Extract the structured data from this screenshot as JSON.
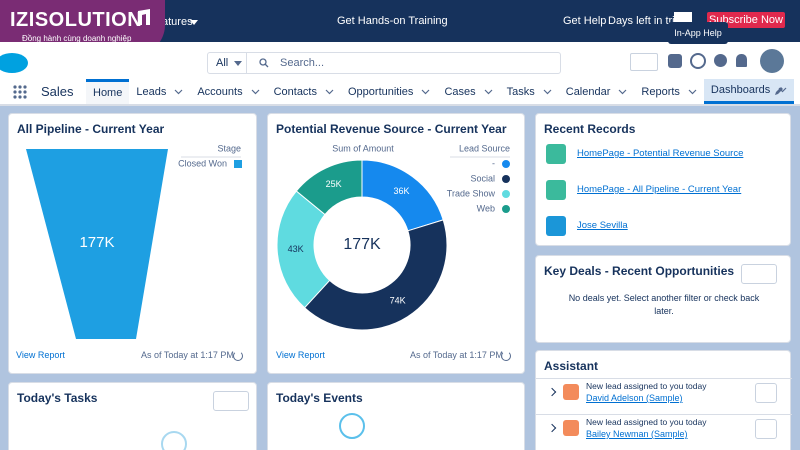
{
  "top_bar": {
    "features": "atures",
    "training": "Get Hands-on Training",
    "help": "Get Help",
    "trial": "Days left in trial",
    "subscribe": "Subscribe Now",
    "tooltip": "In-App Help"
  },
  "brand": {
    "name": "IZISOLUTION",
    "tagline": "Đồng hành cùng doanh nghiệp"
  },
  "search": {
    "scope": "All",
    "placeholder": "Search..."
  },
  "nav": {
    "app": "Sales",
    "tabs": [
      "Home",
      "Leads",
      "Accounts",
      "Contacts",
      "Opportunities",
      "Cases",
      "Tasks",
      "Calendar",
      "Reports",
      "Dashboards"
    ]
  },
  "pipeline": {
    "title": "All Pipeline - Current Year",
    "legend_title": "Stage",
    "legend_item": "Closed Won",
    "value_label": "177K",
    "link": "View Report",
    "footer": "As of Today at 1:17 PM"
  },
  "revenue": {
    "title": "Potential Revenue Source - Current Year",
    "axis_label": "Sum of Amount",
    "legend_title": "Lead Source",
    "center_label": "177K",
    "segments": [
      {
        "name": "-",
        "value": 36000,
        "label": "36K",
        "color": "#1589ee"
      },
      {
        "name": "Social",
        "value": 74000,
        "label": "74K",
        "color": "#16325c"
      },
      {
        "name": "Trade Show",
        "value": 43000,
        "label": "43K",
        "color": "#5fdbe0"
      },
      {
        "name": "Web",
        "value": 25000,
        "label": "25K",
        "color": "#1b9c8c"
      }
    ],
    "link": "View Report",
    "footer": "As of Today at 1:17 PM"
  },
  "recent_records": {
    "title": "Recent Records",
    "items": [
      "HomePage - Potential Revenue Source",
      "HomePage - All Pipeline - Current Year",
      "Jose Sevilla"
    ]
  },
  "key_deals": {
    "title": "Key Deals - Recent Opportunities",
    "message": "No deals yet. Select another filter or check back later."
  },
  "assistant": {
    "title": "Assistant",
    "items": [
      {
        "text": "New lead assigned to you today",
        "link": "David Adelson (Sample)"
      },
      {
        "text": "New lead assigned to you today",
        "link": "Bailey Newman (Sample)"
      }
    ]
  },
  "tasks": {
    "title": "Today's Tasks"
  },
  "events": {
    "title": "Today's Events"
  }
}
